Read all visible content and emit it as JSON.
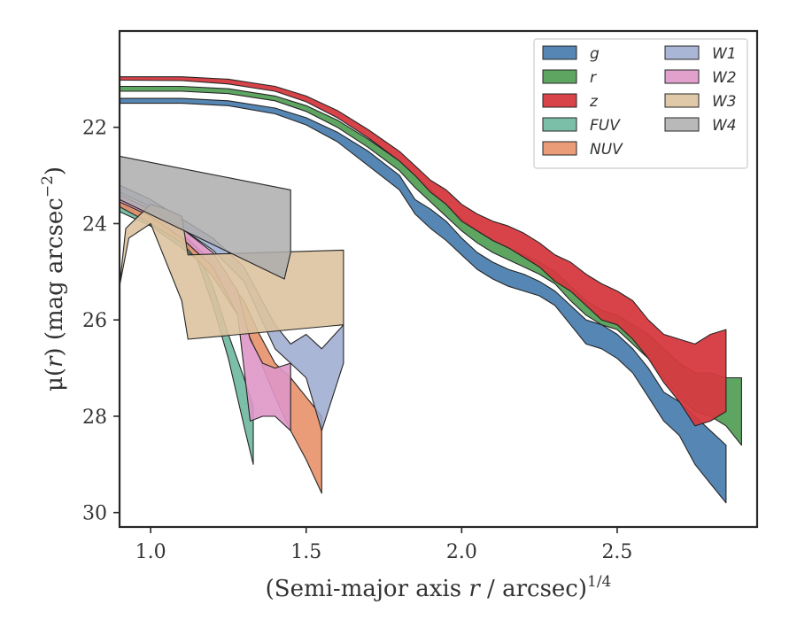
{
  "chart_data": {
    "type": "area",
    "title": "",
    "xlabel": {
      "prefix": "(Semi-major axis ",
      "var": "r",
      "suffix": " / arcsec)",
      "sup": "1/4"
    },
    "ylabel": {
      "prefix": "μ(",
      "var": "r",
      "suffix": ") (mag arcsec",
      "sup": "−2",
      "close": ")"
    },
    "xlim": [
      0.9,
      2.95
    ],
    "ylim": [
      30.3,
      20.0
    ],
    "y_inverted": true,
    "xticks": [
      1.0,
      1.5,
      2.0,
      2.5
    ],
    "xtick_labels": [
      "1.0",
      "1.5",
      "2.0",
      "2.5"
    ],
    "yticks": [
      22,
      24,
      26,
      28,
      30
    ],
    "ytick_labels": [
      "22",
      "24",
      "26",
      "28",
      "30"
    ],
    "grid": false,
    "legend": {
      "position": "top-right",
      "columns": 2
    },
    "series": [
      {
        "name": "g",
        "color": "#4C7FB0",
        "opacity": 0.95,
        "z": 3,
        "upper": [
          [
            0.9,
            21.4
          ],
          [
            1.1,
            21.4
          ],
          [
            1.25,
            21.45
          ],
          [
            1.4,
            21.6
          ],
          [
            1.5,
            21.8
          ],
          [
            1.6,
            22.1
          ],
          [
            1.7,
            22.5
          ],
          [
            1.8,
            23.0
          ],
          [
            1.85,
            23.5
          ],
          [
            1.9,
            23.7
          ],
          [
            1.95,
            23.95
          ],
          [
            2.0,
            24.3
          ],
          [
            2.05,
            24.6
          ],
          [
            2.1,
            24.8
          ],
          [
            2.15,
            24.95
          ],
          [
            2.2,
            25.05
          ],
          [
            2.25,
            25.2
          ],
          [
            2.3,
            25.4
          ],
          [
            2.35,
            25.7
          ],
          [
            2.4,
            26.0
          ],
          [
            2.45,
            26.1
          ],
          [
            2.5,
            26.3
          ],
          [
            2.55,
            26.6
          ],
          [
            2.6,
            27.0
          ],
          [
            2.65,
            27.5
          ],
          [
            2.7,
            27.7
          ],
          [
            2.75,
            28.0
          ],
          [
            2.8,
            28.3
          ],
          [
            2.85,
            28.6
          ]
        ],
        "lower": [
          [
            0.9,
            21.5
          ],
          [
            1.1,
            21.5
          ],
          [
            1.25,
            21.55
          ],
          [
            1.4,
            21.72
          ],
          [
            1.5,
            21.95
          ],
          [
            1.6,
            22.3
          ],
          [
            1.7,
            22.8
          ],
          [
            1.8,
            23.3
          ],
          [
            1.85,
            23.8
          ],
          [
            1.9,
            24.1
          ],
          [
            1.95,
            24.35
          ],
          [
            2.0,
            24.65
          ],
          [
            2.05,
            24.95
          ],
          [
            2.1,
            25.15
          ],
          [
            2.15,
            25.3
          ],
          [
            2.2,
            25.4
          ],
          [
            2.25,
            25.5
          ],
          [
            2.3,
            25.7
          ],
          [
            2.35,
            26.1
          ],
          [
            2.4,
            26.5
          ],
          [
            2.45,
            26.6
          ],
          [
            2.5,
            26.8
          ],
          [
            2.55,
            27.1
          ],
          [
            2.6,
            27.6
          ],
          [
            2.65,
            28.1
          ],
          [
            2.7,
            28.4
          ],
          [
            2.75,
            29.0
          ],
          [
            2.8,
            29.4
          ],
          [
            2.85,
            29.8
          ]
        ]
      },
      {
        "name": "r",
        "color": "#55A05A",
        "opacity": 0.95,
        "z": 4,
        "upper": [
          [
            0.9,
            21.15
          ],
          [
            1.1,
            21.15
          ],
          [
            1.25,
            21.2
          ],
          [
            1.4,
            21.35
          ],
          [
            1.5,
            21.55
          ],
          [
            1.6,
            21.85
          ],
          [
            1.7,
            22.25
          ],
          [
            1.8,
            22.7
          ],
          [
            1.85,
            23.0
          ],
          [
            1.9,
            23.3
          ],
          [
            1.95,
            23.6
          ],
          [
            2.0,
            23.9
          ],
          [
            2.05,
            24.15
          ],
          [
            2.1,
            24.35
          ],
          [
            2.15,
            24.5
          ],
          [
            2.2,
            24.65
          ],
          [
            2.25,
            24.8
          ],
          [
            2.3,
            25.0
          ],
          [
            2.35,
            25.3
          ],
          [
            2.4,
            25.6
          ],
          [
            2.45,
            25.8
          ],
          [
            2.5,
            25.9
          ],
          [
            2.55,
            26.1
          ],
          [
            2.6,
            26.3
          ],
          [
            2.65,
            26.6
          ],
          [
            2.7,
            26.9
          ],
          [
            2.75,
            27.1
          ],
          [
            2.8,
            27.1
          ],
          [
            2.85,
            27.2
          ],
          [
            2.9,
            27.2
          ]
        ],
        "lower": [
          [
            0.9,
            21.25
          ],
          [
            1.1,
            21.25
          ],
          [
            1.25,
            21.3
          ],
          [
            1.4,
            21.45
          ],
          [
            1.5,
            21.67
          ],
          [
            1.6,
            22.0
          ],
          [
            1.7,
            22.42
          ],
          [
            1.8,
            22.9
          ],
          [
            1.85,
            23.25
          ],
          [
            1.9,
            23.55
          ],
          [
            1.95,
            23.85
          ],
          [
            2.0,
            24.15
          ],
          [
            2.05,
            24.4
          ],
          [
            2.1,
            24.6
          ],
          [
            2.15,
            24.75
          ],
          [
            2.2,
            24.9
          ],
          [
            2.25,
            25.05
          ],
          [
            2.3,
            25.25
          ],
          [
            2.35,
            25.6
          ],
          [
            2.4,
            25.9
          ],
          [
            2.45,
            26.1
          ],
          [
            2.5,
            26.2
          ],
          [
            2.55,
            26.5
          ],
          [
            2.6,
            26.8
          ],
          [
            2.65,
            27.2
          ],
          [
            2.7,
            27.6
          ],
          [
            2.75,
            27.9
          ],
          [
            2.8,
            28.0
          ],
          [
            2.85,
            28.2
          ],
          [
            2.9,
            28.6
          ]
        ]
      },
      {
        "name": "z",
        "color": "#D6393F",
        "opacity": 0.95,
        "z": 5,
        "upper": [
          [
            0.9,
            20.95
          ],
          [
            1.1,
            20.95
          ],
          [
            1.25,
            21.0
          ],
          [
            1.4,
            21.15
          ],
          [
            1.5,
            21.35
          ],
          [
            1.6,
            21.65
          ],
          [
            1.7,
            22.05
          ],
          [
            1.8,
            22.5
          ],
          [
            1.85,
            22.8
          ],
          [
            1.9,
            23.1
          ],
          [
            1.95,
            23.3
          ],
          [
            2.0,
            23.6
          ],
          [
            2.05,
            23.8
          ],
          [
            2.1,
            23.95
          ],
          [
            2.15,
            24.05
          ],
          [
            2.2,
            24.2
          ],
          [
            2.25,
            24.4
          ],
          [
            2.3,
            24.65
          ],
          [
            2.35,
            24.8
          ],
          [
            2.4,
            25.05
          ],
          [
            2.45,
            25.25
          ],
          [
            2.5,
            25.4
          ],
          [
            2.55,
            25.6
          ],
          [
            2.6,
            26.0
          ],
          [
            2.65,
            26.3
          ],
          [
            2.7,
            26.4
          ],
          [
            2.75,
            26.5
          ],
          [
            2.8,
            26.3
          ],
          [
            2.85,
            26.2
          ]
        ],
        "lower": [
          [
            0.9,
            21.02
          ],
          [
            1.1,
            21.03
          ],
          [
            1.25,
            21.1
          ],
          [
            1.4,
            21.25
          ],
          [
            1.5,
            21.47
          ],
          [
            1.6,
            21.8
          ],
          [
            1.7,
            22.22
          ],
          [
            1.8,
            22.7
          ],
          [
            1.85,
            23.0
          ],
          [
            1.9,
            23.35
          ],
          [
            1.95,
            23.6
          ],
          [
            2.0,
            23.95
          ],
          [
            2.05,
            24.15
          ],
          [
            2.1,
            24.35
          ],
          [
            2.15,
            24.5
          ],
          [
            2.2,
            24.7
          ],
          [
            2.25,
            24.9
          ],
          [
            2.3,
            25.2
          ],
          [
            2.35,
            25.4
          ],
          [
            2.4,
            25.7
          ],
          [
            2.45,
            26.0
          ],
          [
            2.5,
            26.1
          ],
          [
            2.55,
            26.4
          ],
          [
            2.6,
            26.8
          ],
          [
            2.65,
            27.3
          ],
          [
            2.7,
            27.7
          ],
          [
            2.75,
            28.2
          ],
          [
            2.8,
            28.1
          ],
          [
            2.85,
            27.9
          ]
        ]
      },
      {
        "name": "FUV",
        "color": "#6DB89E",
        "opacity": 0.9,
        "z": 1,
        "upper": [
          [
            0.9,
            23.6
          ],
          [
            1.0,
            23.9
          ],
          [
            1.1,
            24.3
          ],
          [
            1.15,
            24.6
          ],
          [
            1.2,
            25.3
          ],
          [
            1.25,
            26.3
          ],
          [
            1.3,
            27.2
          ],
          [
            1.33,
            27.8
          ]
        ],
        "lower": [
          [
            0.9,
            23.75
          ],
          [
            1.0,
            24.05
          ],
          [
            1.1,
            24.5
          ],
          [
            1.15,
            24.75
          ],
          [
            1.2,
            25.7
          ],
          [
            1.25,
            26.8
          ],
          [
            1.3,
            28.2
          ],
          [
            1.33,
            29.0
          ]
        ]
      },
      {
        "name": "NUV",
        "color": "#E8916A",
        "opacity": 0.9,
        "z": 1,
        "upper": [
          [
            0.9,
            23.5
          ],
          [
            1.0,
            23.8
          ],
          [
            1.1,
            24.2
          ],
          [
            1.2,
            24.8
          ],
          [
            1.3,
            25.6
          ],
          [
            1.35,
            26.3
          ],
          [
            1.4,
            26.9
          ],
          [
            1.45,
            27.2
          ],
          [
            1.5,
            27.6
          ],
          [
            1.55,
            28.0
          ]
        ],
        "lower": [
          [
            0.9,
            23.65
          ],
          [
            1.0,
            24.0
          ],
          [
            1.1,
            24.4
          ],
          [
            1.2,
            25.1
          ],
          [
            1.3,
            26.1
          ],
          [
            1.35,
            26.8
          ],
          [
            1.4,
            27.6
          ],
          [
            1.45,
            28.3
          ],
          [
            1.5,
            28.9
          ],
          [
            1.55,
            29.6
          ]
        ]
      },
      {
        "name": "W1",
        "color": "#9AA9CE",
        "opacity": 0.85,
        "z": 1,
        "upper": [
          [
            0.9,
            23.2
          ],
          [
            1.0,
            23.5
          ],
          [
            1.1,
            23.9
          ],
          [
            1.2,
            24.3
          ],
          [
            1.3,
            24.9
          ],
          [
            1.35,
            25.5
          ],
          [
            1.4,
            26.1
          ],
          [
            1.45,
            26.5
          ],
          [
            1.5,
            26.3
          ],
          [
            1.55,
            26.6
          ],
          [
            1.62,
            26.1
          ]
        ],
        "lower": [
          [
            0.9,
            23.35
          ],
          [
            1.0,
            23.65
          ],
          [
            1.1,
            24.1
          ],
          [
            1.2,
            24.55
          ],
          [
            1.3,
            25.2
          ],
          [
            1.35,
            25.9
          ],
          [
            1.4,
            26.6
          ],
          [
            1.45,
            26.9
          ],
          [
            1.5,
            27.2
          ],
          [
            1.55,
            28.3
          ],
          [
            1.62,
            26.9
          ]
        ]
      },
      {
        "name": "W2",
        "color": "#DE97C6",
        "opacity": 0.9,
        "z": 2,
        "upper": [
          [
            0.9,
            23.4
          ],
          [
            1.0,
            23.7
          ],
          [
            1.1,
            24.1
          ],
          [
            1.2,
            24.6
          ],
          [
            1.28,
            25.4
          ],
          [
            1.32,
            26.4
          ],
          [
            1.36,
            26.9
          ],
          [
            1.4,
            27.0
          ],
          [
            1.45,
            26.9
          ]
        ],
        "lower": [
          [
            0.9,
            23.55
          ],
          [
            1.0,
            23.85
          ],
          [
            1.1,
            24.3
          ],
          [
            1.2,
            24.9
          ],
          [
            1.28,
            25.9
          ],
          [
            1.32,
            28.1
          ],
          [
            1.36,
            28.0
          ],
          [
            1.4,
            28.0
          ],
          [
            1.45,
            28.3
          ]
        ]
      },
      {
        "name": "W3",
        "color": "#DCC39E",
        "opacity": 0.9,
        "z": 6,
        "polygon": [
          [
            0.9,
            25.3
          ],
          [
            0.92,
            24.1
          ],
          [
            1.0,
            23.6
          ],
          [
            1.05,
            23.7
          ],
          [
            1.1,
            23.85
          ],
          [
            1.12,
            24.65
          ],
          [
            1.62,
            24.55
          ],
          [
            1.62,
            26.1
          ],
          [
            1.12,
            26.4
          ],
          [
            1.1,
            25.6
          ],
          [
            1.0,
            24.0
          ],
          [
            0.93,
            24.3
          ]
        ]
      },
      {
        "name": "W4",
        "color": "#ADADAD",
        "opacity": 0.85,
        "z": 7,
        "polygon": [
          [
            0.9,
            22.6
          ],
          [
            1.45,
            23.3
          ],
          [
            1.45,
            24.6
          ],
          [
            1.43,
            25.15
          ],
          [
            0.9,
            23.5
          ]
        ]
      }
    ]
  }
}
